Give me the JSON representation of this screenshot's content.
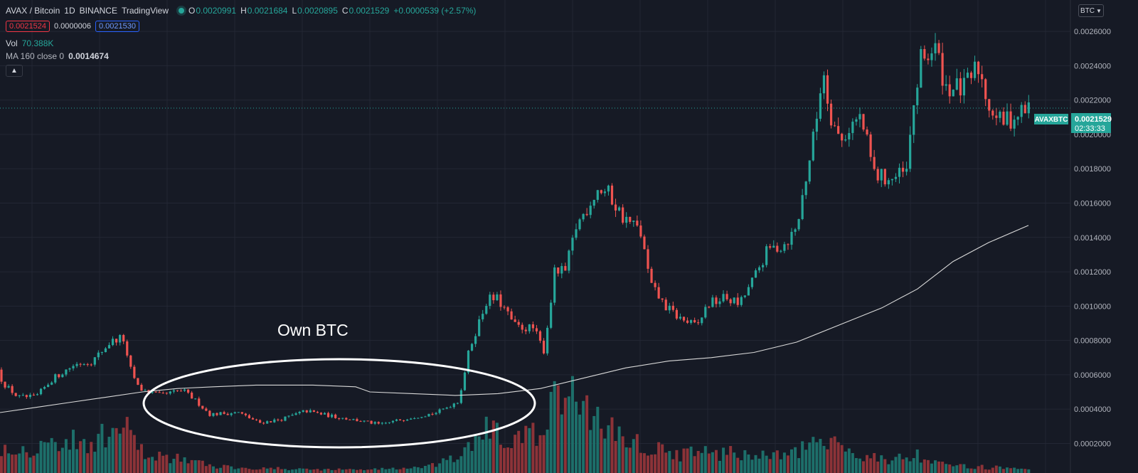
{
  "header": {
    "symbol": "AVAX / Bitcoin",
    "interval": "1D",
    "exchange": "BINANCE",
    "source": "TradingView",
    "ohlc": {
      "o_key": "O",
      "o": "0.0020991",
      "h_key": "H",
      "h": "0.0021684",
      "l_key": "L",
      "l": "0.0020895",
      "c_key": "C",
      "c": "0.0021529",
      "change": "+0.0000539 (+2.57%)"
    },
    "bid": "0.0021524",
    "spread": "0.0000006",
    "ask": "0.0021530",
    "volume_label": "Vol",
    "volume_value": "70.388K",
    "ma_label": "MA 160 close 0",
    "ma_value": "0.0014674",
    "collapse_icon": "chevron-up-icon"
  },
  "price_axis": {
    "currency_button": "BTC",
    "last_price_tag": "0.0021529",
    "countdown": "02:33:33",
    "symbol_tag": "AVAXBTC"
  },
  "annotation": {
    "text": "Own BTC"
  },
  "colors": {
    "background": "#161a25",
    "grid": "#232734",
    "up": "#26a69a",
    "down": "#ef5350",
    "vol_up": "#1d6f6a",
    "vol_down": "#8c3338",
    "ma": "#d9d9d9",
    "annotation": "#ffffff"
  },
  "chart_data": {
    "type": "candlestick",
    "interval": "1D",
    "ylim": [
      9e-05,
      0.0027
    ],
    "yticks": [
      0.0002,
      0.0004,
      0.0006,
      0.0008,
      0.001,
      0.0012,
      0.0014,
      0.0016,
      0.0018,
      0.002,
      0.0022,
      0.0024,
      0.0026
    ],
    "ytick_labels": [
      "0.0002000",
      "0.0004000",
      "0.0006000",
      "0.0008000",
      "0.0010000",
      "0.0012000",
      "0.0014000",
      "0.0016000",
      "0.0018000",
      "0.0020000",
      "0.0022000",
      "0.0024000",
      "0.0026000"
    ],
    "last_price": 0.0021529,
    "price_path": [
      [
        0,
        0.00063
      ],
      [
        10,
        0.00055
      ],
      [
        30,
        0.00047
      ],
      [
        55,
        0.00047
      ],
      [
        80,
        0.00058
      ],
      [
        110,
        0.00066
      ],
      [
        135,
        0.00068
      ],
      [
        160,
        0.00079
      ],
      [
        178,
        0.00082
      ],
      [
        185,
        0.00067
      ],
      [
        200,
        0.00052
      ],
      [
        230,
        0.00048
      ],
      [
        262,
        0.00051
      ],
      [
        280,
        0.00045
      ],
      [
        300,
        0.00037
      ],
      [
        340,
        0.00038
      ],
      [
        370,
        0.00032
      ],
      [
        400,
        0.00034
      ],
      [
        435,
        0.00039
      ],
      [
        470,
        0.00036
      ],
      [
        500,
        0.00034
      ],
      [
        540,
        0.00031
      ],
      [
        580,
        0.00035
      ],
      [
        620,
        0.00038
      ],
      [
        650,
        0.00045
      ],
      [
        665,
        0.00075
      ],
      [
        690,
        0.00104
      ],
      [
        705,
        0.00104
      ],
      [
        730,
        0.00088
      ],
      [
        755,
        0.00087
      ],
      [
        770,
        0.00074
      ],
      [
        785,
        0.0012
      ],
      [
        800,
        0.0012
      ],
      [
        815,
        0.00146
      ],
      [
        845,
        0.00168
      ],
      [
        860,
        0.00166
      ],
      [
        880,
        0.00152
      ],
      [
        905,
        0.00144
      ],
      [
        920,
        0.00112
      ],
      [
        940,
        0.001
      ],
      [
        960,
        0.00093
      ],
      [
        985,
        0.00088
      ],
      [
        1000,
        0.00101
      ],
      [
        1025,
        0.00105
      ],
      [
        1045,
        0.00101
      ],
      [
        1065,
        0.00116
      ],
      [
        1085,
        0.00133
      ],
      [
        1105,
        0.00135
      ],
      [
        1125,
        0.00145
      ],
      [
        1140,
        0.00179
      ],
      [
        1152,
        0.00205
      ],
      [
        1162,
        0.0024
      ],
      [
        1172,
        0.00213
      ],
      [
        1187,
        0.00195
      ],
      [
        1200,
        0.00205
      ],
      [
        1215,
        0.0021
      ],
      [
        1235,
        0.00176
      ],
      [
        1260,
        0.00174
      ],
      [
        1280,
        0.00178
      ],
      [
        1290,
        0.00218
      ],
      [
        1300,
        0.00243
      ],
      [
        1320,
        0.0025
      ],
      [
        1335,
        0.00228
      ],
      [
        1360,
        0.00226
      ],
      [
        1380,
        0.0024
      ],
      [
        1395,
        0.00218
      ],
      [
        1412,
        0.00207
      ],
      [
        1430,
        0.0021
      ],
      [
        1448,
        0.00215
      ]
    ],
    "ma": {
      "name": "MA 160 close 0",
      "path": [
        [
          0,
          0.00038
        ],
        [
          50,
          0.00041
        ],
        [
          100,
          0.00044
        ],
        [
          150,
          0.00047
        ],
        [
          200,
          0.0005
        ],
        [
          250,
          0.00052
        ],
        [
          300,
          0.00053
        ],
        [
          360,
          0.00054
        ],
        [
          440,
          0.00054
        ],
        [
          500,
          0.00053
        ],
        [
          520,
          0.0005
        ],
        [
          580,
          0.00049
        ],
        [
          640,
          0.00048
        ],
        [
          700,
          0.00049
        ],
        [
          760,
          0.00052
        ],
        [
          820,
          0.00058
        ],
        [
          880,
          0.00064
        ],
        [
          940,
          0.00068
        ],
        [
          1000,
          0.0007
        ],
        [
          1060,
          0.00073
        ],
        [
          1120,
          0.00079
        ],
        [
          1180,
          0.00089
        ],
        [
          1240,
          0.00099
        ],
        [
          1290,
          0.0011
        ],
        [
          1340,
          0.00126
        ],
        [
          1390,
          0.00137
        ],
        [
          1446,
          0.00147
        ]
      ]
    },
    "volume": {
      "ylim": [
        0,
        200
      ],
      "path": [
        [
          0,
          40
        ],
        [
          40,
          35
        ],
        [
          80,
          48
        ],
        [
          120,
          45
        ],
        [
          160,
          58
        ],
        [
          180,
          62
        ],
        [
          200,
          30
        ],
        [
          260,
          20
        ],
        [
          300,
          10
        ],
        [
          400,
          6
        ],
        [
          500,
          5
        ],
        [
          600,
          8
        ],
        [
          650,
          25
        ],
        [
          680,
          65
        ],
        [
          720,
          45
        ],
        [
          760,
          60
        ],
        [
          790,
          120
        ],
        [
          820,
          100
        ],
        [
          850,
          70
        ],
        [
          900,
          42
        ],
        [
          950,
          28
        ],
        [
          1000,
          30
        ],
        [
          1050,
          28
        ],
        [
          1100,
          24
        ],
        [
          1140,
          38
        ],
        [
          1160,
          45
        ],
        [
          1200,
          30
        ],
        [
          1250,
          20
        ],
        [
          1290,
          25
        ],
        [
          1300,
          15
        ],
        [
          1350,
          10
        ],
        [
          1400,
          8
        ],
        [
          1448,
          4
        ]
      ]
    }
  }
}
